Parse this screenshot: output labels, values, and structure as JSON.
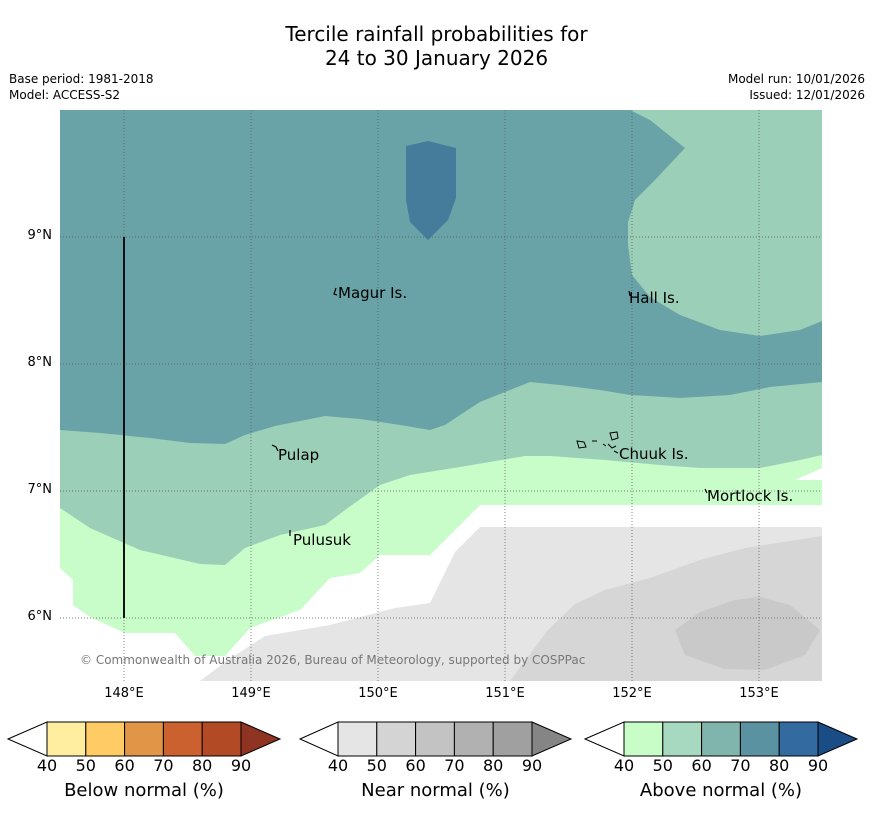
{
  "title_line1": "Tercile rainfall probabilities for",
  "title_line2": "24 to 30 January 2026",
  "base_period": "Base period: 1981-2018",
  "model": "Model: ACCESS-S2",
  "model_run": "Model run: 10/01/2026",
  "issued": "Issued: 12/01/2026",
  "y_ticks": [
    "9°N",
    "8°N",
    "7°N",
    "6°N"
  ],
  "x_ticks": [
    "148°E",
    "149°E",
    "150°E",
    "151°E",
    "152°E",
    "153°E"
  ],
  "places": {
    "magur": "Magur Is.",
    "hall": "Hall Is.",
    "pulap": "Pulap",
    "chuuk": "Chuuk Is.",
    "mortlock": "Mortlock Is.",
    "pulusuk": "Pulusuk"
  },
  "copyright": "© Commonwealth of Australia 2026, Bureau of Meteorology, supported by COSPPac",
  "colorbars": {
    "below": {
      "label": "Below normal (%)",
      "ticks": [
        "40",
        "50",
        "60",
        "70",
        "80",
        "90"
      ],
      "colors": [
        "#ffeea0",
        "#fecb65",
        "#e19547",
        "#cc6130",
        "#b14a25",
        "#8f3322"
      ]
    },
    "near": {
      "label": "Near normal (%)",
      "ticks": [
        "40",
        "50",
        "60",
        "70",
        "80",
        "90"
      ],
      "colors": [
        "#e5e5e5",
        "#d4d4d4",
        "#c3c3c3",
        "#b1b1b1",
        "#a0a0a0",
        "#858585"
      ]
    },
    "above": {
      "label": "Above normal (%)",
      "ticks": [
        "40",
        "50",
        "60",
        "70",
        "80",
        "90"
      ],
      "colors": [
        "#c8fdc8",
        "#a6d9bf",
        "#7fb5ac",
        "#5b92a2",
        "#336aa0",
        "#1a4d85"
      ]
    }
  },
  "colors": {
    "above_60": "#9ccfb8",
    "above_70": "#6aa3a7",
    "above_80": "#457c9c",
    "above_40": "#c8fcc8",
    "near_40": "#e5e5e5",
    "near_50": "#d6d6d6",
    "near_60": "#c9c9c9"
  }
}
